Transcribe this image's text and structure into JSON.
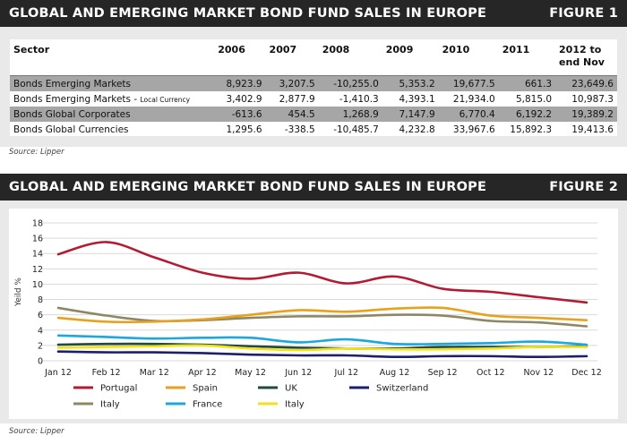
{
  "figure1": {
    "title": "GLOBAL AND EMERGING MARKET BOND FUND SALES IN EUROPE",
    "figure_label": "FIGURE 1",
    "source": "Source: Lipper",
    "headers": [
      "Sector",
      "2006",
      "2007",
      "2008",
      "2009",
      "2010",
      "2011",
      "2012 to\nend Nov"
    ],
    "rows": [
      {
        "sector": "Bonds Emerging Markets",
        "sector_suffix": "",
        "values": [
          "8,923.9",
          "3,207.5",
          "-10,255.0",
          "5,353.2",
          "19,677.5",
          "661.3",
          "23,649.6"
        ]
      },
      {
        "sector": "Bonds Emerging Markets - ",
        "sector_suffix": "Local Currency",
        "values": [
          "3,402.9",
          "2,877.9",
          "-1,410.3",
          "4,393.1",
          "21,934.0",
          "5,815.0",
          "10,987.3"
        ]
      },
      {
        "sector": "Bonds Global Corporates",
        "sector_suffix": "",
        "values": [
          "-613.6",
          "454.5",
          "1,268.9",
          "7,147.9",
          "6,770.4",
          "6,192.2",
          "19,389.2"
        ]
      },
      {
        "sector": "Bonds Global Currencies",
        "sector_suffix": "",
        "values": [
          "1,295.6",
          "-338.5",
          "-10,485.7",
          "4,232.8",
          "33,967.6",
          "15,892.3",
          "19,413.6"
        ]
      }
    ]
  },
  "figure2": {
    "title": "GLOBAL AND EMERGING MARKET BOND FUND SALES IN EUROPE",
    "figure_label": "FIGURE 2",
    "source": "Source: Lipper"
  },
  "chart_data": {
    "type": "line",
    "title": "",
    "xlabel": "",
    "ylabel": "Yeild %",
    "ylim": [
      0,
      18
    ],
    "yticks": [
      0,
      2,
      4,
      6,
      8,
      10,
      12,
      14,
      16,
      18
    ],
    "x": [
      "Jan 12",
      "Feb 12",
      "Mar 12",
      "Apr 12",
      "May 12",
      "Jun 12",
      "Jul 12",
      "Aug 12",
      "Sep 12",
      "Oct 12",
      "Nov 12",
      "Dec 12"
    ],
    "grid": true,
    "legend_position": "bottom",
    "series": [
      {
        "name": "Portugal",
        "color": "#b31b34",
        "values": [
          13.9,
          15.5,
          13.5,
          11.5,
          10.7,
          11.5,
          10.1,
          11.0,
          9.4,
          9.0,
          8.3,
          7.6
        ]
      },
      {
        "name": "Spain",
        "color": "#e8a11b",
        "values": [
          5.6,
          5.1,
          5.1,
          5.4,
          6.0,
          6.6,
          6.4,
          6.8,
          6.9,
          5.9,
          5.6,
          5.3
        ]
      },
      {
        "name": "UK",
        "color": "#22493f",
        "values": [
          2.1,
          2.2,
          2.2,
          2.1,
          1.9,
          1.7,
          1.6,
          1.6,
          1.8,
          1.8,
          1.8,
          1.9
        ]
      },
      {
        "name": "Switzerland",
        "color": "#1c1f6e",
        "values": [
          1.2,
          1.1,
          1.1,
          1.0,
          0.8,
          0.7,
          0.7,
          0.5,
          0.6,
          0.6,
          0.5,
          0.6
        ]
      },
      {
        "name": "Italy",
        "color": "#8f8666",
        "values": [
          6.9,
          5.9,
          5.2,
          5.3,
          5.6,
          5.8,
          5.8,
          6.0,
          5.9,
          5.2,
          5.0,
          4.5
        ]
      },
      {
        "name": "France",
        "color": "#1ba8e0",
        "values": [
          3.3,
          3.1,
          2.9,
          3.0,
          3.0,
          2.4,
          2.8,
          2.2,
          2.2,
          2.3,
          2.5,
          2.1
        ]
      },
      {
        "name": "Italy",
        "color": "#f2e21a",
        "values": [
          1.7,
          1.8,
          1.9,
          2.0,
          1.6,
          1.4,
          1.6,
          1.5,
          1.5,
          1.6,
          1.8,
          1.8
        ]
      }
    ]
  }
}
